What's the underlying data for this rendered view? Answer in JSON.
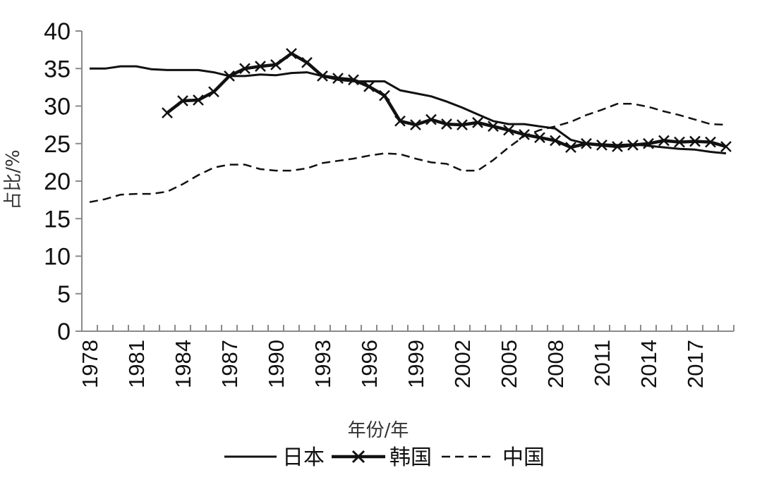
{
  "chart_data": {
    "type": "line",
    "xlabel": "年份/年",
    "ylabel": "占比/%",
    "ylim": [
      0,
      40
    ],
    "yticks": [
      "0",
      "5",
      "10",
      "15",
      "20",
      "25",
      "30",
      "35",
      "40"
    ],
    "xlim": [
      1978,
      2019
    ],
    "xticks": [
      "1978",
      "1981",
      "1984",
      "1987",
      "1990",
      "1993",
      "1996",
      "1999",
      "2002",
      "2005",
      "2008",
      "2011",
      "2014",
      "2017"
    ],
    "grid": false,
    "legend_position": "bottom",
    "series": [
      {
        "name": "日本",
        "style": "solid",
        "x": [
          1978,
          1979,
          1980,
          1981,
          1982,
          1983,
          1984,
          1985,
          1986,
          1987,
          1988,
          1989,
          1990,
          1991,
          1992,
          1993,
          1994,
          1995,
          1996,
          1997,
          1998,
          1999,
          2000,
          2001,
          2002,
          2003,
          2004,
          2005,
          2006,
          2007,
          2008,
          2009,
          2010,
          2011,
          2012,
          2013,
          2014,
          2015,
          2016,
          2017,
          2018,
          2019
        ],
        "values": [
          35.0,
          35.0,
          35.3,
          35.3,
          34.9,
          34.8,
          34.8,
          34.8,
          34.5,
          34.0,
          34.0,
          34.2,
          34.1,
          34.4,
          34.5,
          34.0,
          33.5,
          33.3,
          33.3,
          33.3,
          32.1,
          31.7,
          31.3,
          30.6,
          29.8,
          28.9,
          28.0,
          27.6,
          27.6,
          27.3,
          27.0,
          25.5,
          25.0,
          24.9,
          24.8,
          24.9,
          24.7,
          24.5,
          24.3,
          24.2,
          23.9,
          23.7
        ]
      },
      {
        "name": "韩国",
        "style": "x-markers",
        "x": [
          1983,
          1984,
          1985,
          1986,
          1987,
          1988,
          1989,
          1990,
          1991,
          1992,
          1993,
          1994,
          1995,
          1996,
          1997,
          1998,
          1999,
          2000,
          2001,
          2002,
          2003,
          2004,
          2005,
          2006,
          2007,
          2008,
          2009,
          2010,
          2011,
          2012,
          2013,
          2014,
          2015,
          2016,
          2017,
          2018,
          2019
        ],
        "values": [
          29.1,
          30.7,
          30.8,
          31.9,
          34.0,
          35.0,
          35.3,
          35.5,
          37.0,
          35.8,
          34.0,
          33.7,
          33.5,
          32.6,
          31.4,
          28.0,
          27.5,
          28.2,
          27.6,
          27.5,
          27.8,
          27.3,
          26.8,
          26.2,
          25.8,
          25.4,
          24.5,
          25.0,
          24.8,
          24.6,
          24.8,
          25.0,
          25.4,
          25.2,
          25.3,
          25.2,
          24.6
        ]
      },
      {
        "name": "中国",
        "style": "dashed",
        "x": [
          1978,
          1979,
          1980,
          1981,
          1982,
          1983,
          1984,
          1985,
          1986,
          1987,
          1988,
          1989,
          1990,
          1991,
          1992,
          1993,
          1994,
          1995,
          1996,
          1997,
          1998,
          1999,
          2000,
          2001,
          2002,
          2003,
          2004,
          2005,
          2006,
          2007,
          2008,
          2009,
          2010,
          2011,
          2012,
          2013,
          2014,
          2015,
          2016,
          2017,
          2018,
          2019
        ],
        "values": [
          17.2,
          17.6,
          18.2,
          18.3,
          18.3,
          18.6,
          19.6,
          20.8,
          21.8,
          22.2,
          22.2,
          21.6,
          21.4,
          21.4,
          21.7,
          22.4,
          22.7,
          23.0,
          23.4,
          23.7,
          23.6,
          23.0,
          22.5,
          22.3,
          21.4,
          21.4,
          22.8,
          24.5,
          26.0,
          26.8,
          27.3,
          27.9,
          28.8,
          29.5,
          30.3,
          30.3,
          29.9,
          29.3,
          28.8,
          28.2,
          27.6,
          27.5
        ]
      }
    ]
  }
}
